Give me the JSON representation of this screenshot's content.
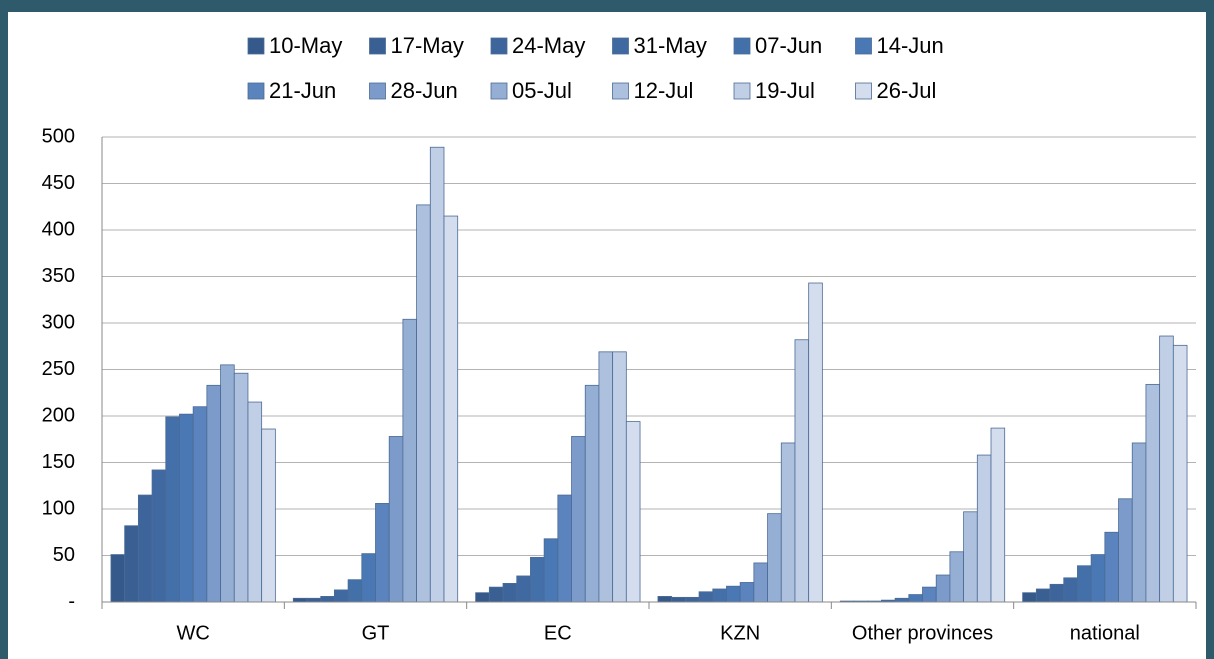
{
  "chart_data": {
    "type": "bar",
    "categories": [
      "WC",
      "GT",
      "EC",
      "KZN",
      "Other provinces",
      "national"
    ],
    "series": [
      {
        "name": "10-May",
        "color": "#35598a",
        "values": [
          51,
          4,
          10,
          6,
          1,
          10
        ]
      },
      {
        "name": "17-May",
        "color": "#3a5f93",
        "values": [
          82,
          4,
          16,
          5,
          1,
          14
        ]
      },
      {
        "name": "24-May",
        "color": "#3e659b",
        "values": [
          115,
          6,
          20,
          5,
          1,
          19
        ]
      },
      {
        "name": "31-May",
        "color": "#4069a2",
        "values": [
          142,
          13,
          28,
          11,
          2,
          26
        ]
      },
      {
        "name": "07-Jun",
        "color": "#4470aa",
        "values": [
          199,
          24,
          48,
          14,
          4,
          39
        ]
      },
      {
        "name": "14-Jun",
        "color": "#4a78b4",
        "values": [
          202,
          52,
          68,
          17,
          8,
          51
        ]
      },
      {
        "name": "21-Jun",
        "color": "#5b83bd",
        "values": [
          210,
          106,
          115,
          21,
          16,
          75
        ]
      },
      {
        "name": "28-Jun",
        "color": "#7c9bca",
        "values": [
          233,
          178,
          178,
          42,
          29,
          111
        ]
      },
      {
        "name": "05-Jul",
        "color": "#95aed4",
        "values": [
          255,
          304,
          233,
          95,
          54,
          171
        ]
      },
      {
        "name": "12-Jul",
        "color": "#adc0de",
        "values": [
          246,
          427,
          269,
          171,
          97,
          234
        ]
      },
      {
        "name": "19-Jul",
        "color": "#c0cee6",
        "values": [
          215,
          489,
          269,
          282,
          158,
          286
        ]
      },
      {
        "name": "26-Jul",
        "color": "#d3ddee",
        "values": [
          186,
          415,
          194,
          343,
          187,
          276
        ]
      }
    ],
    "ylim": [
      0,
      500
    ],
    "yticks": [
      {
        "value": 0,
        "label": "-"
      },
      50,
      100,
      150,
      200,
      250,
      300,
      350,
      400,
      450,
      500
    ],
    "grid": true,
    "legend": "top"
  }
}
